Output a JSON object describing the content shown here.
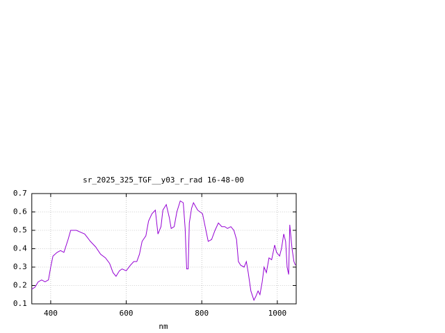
{
  "chart_data": {
    "type": "line",
    "title": "sr_2025_325_TGF__y03_r_rad 16-48-00",
    "x_label": "nm",
    "xlim": [
      350,
      1050
    ],
    "xticks": [
      400,
      600,
      800,
      1000
    ],
    "ylim": [
      0.1,
      0.7
    ],
    "yticks": [
      0.1,
      0.2,
      0.3,
      0.4,
      0.5,
      0.6,
      0.7
    ],
    "grid": true,
    "series": [
      {
        "color": "#9400d3",
        "x": [
          350,
          358,
          367,
          376,
          385,
          394,
          400,
          406,
          417,
          426,
          435,
          446,
          453,
          468,
          479,
          490,
          505,
          519,
          532,
          545,
          556,
          565,
          573,
          582,
          589,
          600,
          611,
          620,
          628,
          635,
          642,
          652,
          659,
          668,
          677,
          684,
          692,
          697,
          706,
          714,
          719,
          727,
          734,
          743,
          751,
          756,
          760,
          764,
          767,
          773,
          778,
          789,
          802,
          809,
          817,
          826,
          835,
          844,
          853,
          861,
          868,
          877,
          885,
          892,
          897,
          903,
          912,
          918,
          923,
          930,
          938,
          943,
          949,
          954,
          960,
          965,
          971,
          978,
          985,
          993,
          998,
          1006,
          1011,
          1017,
          1022,
          1026,
          1030,
          1033,
          1039,
          1044,
          1048
        ],
        "values": [
          0.18,
          0.19,
          0.22,
          0.23,
          0.22,
          0.23,
          0.3,
          0.36,
          0.38,
          0.39,
          0.38,
          0.45,
          0.5,
          0.5,
          0.49,
          0.48,
          0.44,
          0.41,
          0.37,
          0.35,
          0.32,
          0.27,
          0.25,
          0.28,
          0.29,
          0.28,
          0.31,
          0.33,
          0.33,
          0.37,
          0.44,
          0.47,
          0.55,
          0.59,
          0.61,
          0.48,
          0.52,
          0.61,
          0.64,
          0.57,
          0.51,
          0.52,
          0.6,
          0.66,
          0.65,
          0.51,
          0.29,
          0.29,
          0.54,
          0.62,
          0.65,
          0.61,
          0.59,
          0.52,
          0.44,
          0.45,
          0.5,
          0.54,
          0.52,
          0.52,
          0.51,
          0.52,
          0.5,
          0.45,
          0.33,
          0.31,
          0.3,
          0.33,
          0.27,
          0.17,
          0.12,
          0.14,
          0.17,
          0.15,
          0.22,
          0.3,
          0.27,
          0.35,
          0.34,
          0.42,
          0.38,
          0.36,
          0.4,
          0.48,
          0.44,
          0.3,
          0.26,
          0.53,
          0.4,
          0.33,
          0.31
        ]
      }
    ]
  }
}
